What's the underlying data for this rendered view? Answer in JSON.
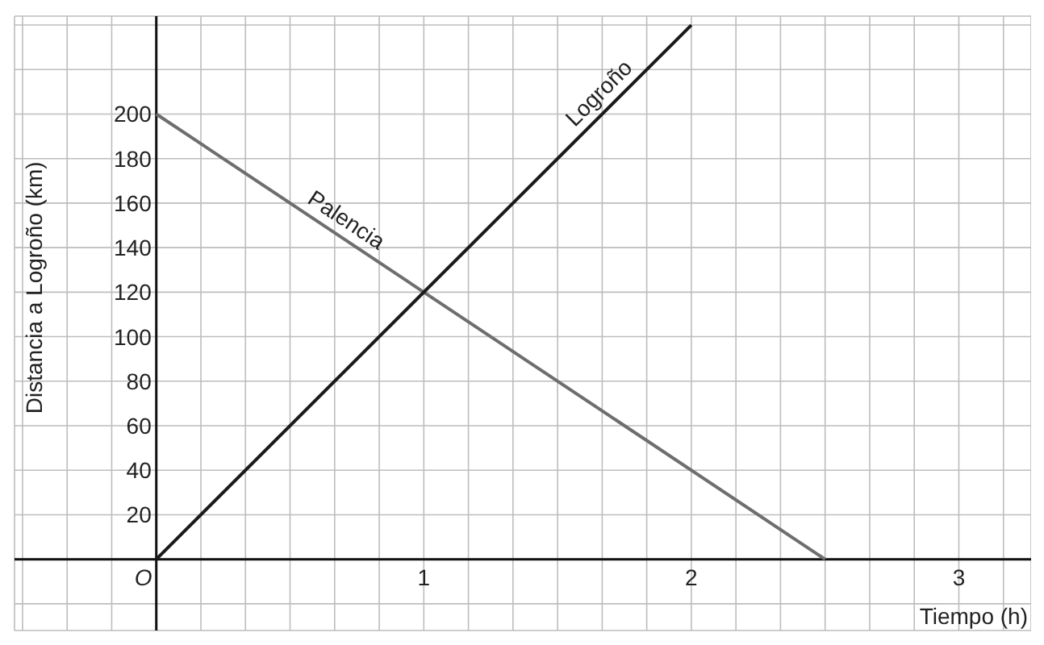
{
  "chart_data": {
    "type": "line",
    "xlabel": "Tiempo (h)",
    "ylabel": "Distancia a Logroño (km)",
    "series": [
      {
        "name": "Palencia",
        "color": "#6e6e6e",
        "x": [
          0,
          2.5
        ],
        "values": [
          200,
          0
        ]
      },
      {
        "name": "Logroño",
        "color": "#1a1a1a",
        "x": [
          0,
          2
        ],
        "values": [
          0,
          240
        ]
      }
    ],
    "xlim": [
      -0.53,
      3.27
    ],
    "ylim": [
      -32,
      244
    ],
    "xticks": [
      {
        "value": -0.5,
        "label": null
      },
      {
        "value": -0.3333,
        "label": null
      },
      {
        "value": -0.1667,
        "label": null
      },
      {
        "value": 0,
        "label": "O"
      },
      {
        "value": 0.1667,
        "label": null
      },
      {
        "value": 0.3333,
        "label": null
      },
      {
        "value": 0.5,
        "label": null
      },
      {
        "value": 0.6667,
        "label": null
      },
      {
        "value": 0.8333,
        "label": null
      },
      1,
      {
        "value": 1.1667,
        "label": null
      },
      {
        "value": 1.3333,
        "label": null
      },
      {
        "value": 1.5,
        "label": null
      },
      {
        "value": 1.6667,
        "label": null
      },
      {
        "value": 1.8333,
        "label": null
      },
      2,
      {
        "value": 2.1667,
        "label": null
      },
      {
        "value": 2.3333,
        "label": null
      },
      {
        "value": 2.5,
        "label": null
      },
      {
        "value": 2.6667,
        "label": null
      },
      {
        "value": 2.8333,
        "label": null
      },
      3,
      {
        "value": 3.1667,
        "label": null
      }
    ],
    "yticks": [
      {
        "value": -20,
        "label": null
      },
      {
        "value": 0,
        "label": null
      },
      20,
      40,
      60,
      80,
      100,
      120,
      140,
      160,
      180,
      200,
      {
        "value": 220,
        "label": null
      },
      {
        "value": 240,
        "label": null
      }
    ],
    "grid": true,
    "marker": "none",
    "line_style": "solid",
    "legend": false
  }
}
